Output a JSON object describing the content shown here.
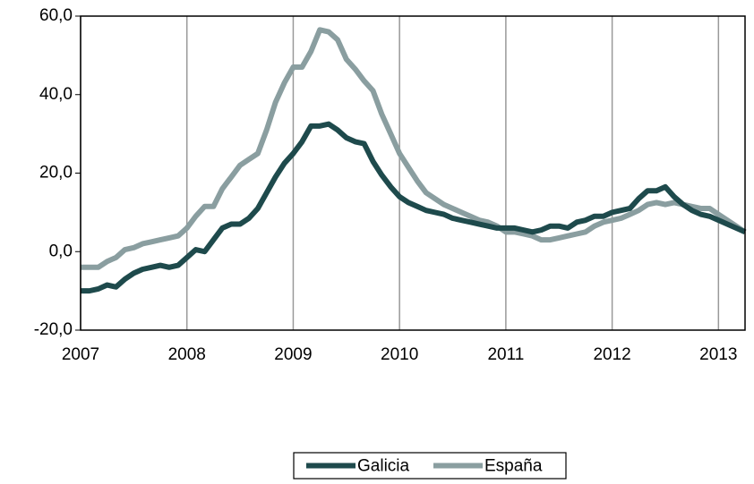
{
  "chart_data": {
    "type": "line",
    "x": [
      2007,
      2007.083,
      2007.167,
      2007.25,
      2007.333,
      2007.417,
      2007.5,
      2007.583,
      2007.667,
      2007.75,
      2007.833,
      2007.917,
      2008,
      2008.083,
      2008.167,
      2008.25,
      2008.333,
      2008.417,
      2008.5,
      2008.583,
      2008.667,
      2008.75,
      2008.833,
      2008.917,
      2009,
      2009.083,
      2009.167,
      2009.25,
      2009.333,
      2009.417,
      2009.5,
      2009.583,
      2009.667,
      2009.75,
      2009.833,
      2009.917,
      2010,
      2010.083,
      2010.167,
      2010.25,
      2010.333,
      2010.417,
      2010.5,
      2010.583,
      2010.667,
      2010.75,
      2010.833,
      2010.917,
      2011,
      2011.083,
      2011.167,
      2011.25,
      2011.333,
      2011.417,
      2011.5,
      2011.583,
      2011.667,
      2011.75,
      2011.833,
      2011.917,
      2012,
      2012.083,
      2012.167,
      2012.25,
      2012.333,
      2012.417,
      2012.5,
      2012.583,
      2012.667,
      2012.75,
      2012.833,
      2012.917,
      2013,
      2013.083,
      2013.167,
      2013.25
    ],
    "series": [
      {
        "name": "Galicia",
        "color": "#1e4a4c",
        "values": [
          -10,
          -10,
          -9.5,
          -8.5,
          -9,
          -7,
          -5.5,
          -4.5,
          -4,
          -3.5,
          -4,
          -3.5,
          -1.5,
          0.5,
          0,
          3,
          6,
          7,
          7,
          8.5,
          11,
          15,
          19,
          22.5,
          25,
          28,
          32,
          32,
          32.5,
          31,
          29,
          28,
          27.5,
          23,
          19.5,
          16.5,
          14,
          12.5,
          11.5,
          10.5,
          10,
          9.5,
          8.5,
          8,
          7.5,
          7,
          6.5,
          6,
          6,
          6,
          5.5,
          5,
          5.5,
          6.5,
          6.5,
          6,
          7.5,
          8,
          9,
          9,
          10,
          10.5,
          11,
          13.5,
          15.5,
          15.5,
          16.5,
          14,
          12,
          10.5,
          9.5,
          9,
          8,
          7,
          6,
          5
        ]
      },
      {
        "name": "España",
        "color": "#8a9ea0",
        "values": [
          -4,
          -4,
          -4,
          -2.5,
          -1.5,
          0.5,
          1,
          2,
          2.5,
          3,
          3.5,
          4,
          6,
          9,
          11.5,
          11.5,
          16,
          19,
          22,
          23.5,
          25,
          31,
          38,
          43,
          47,
          47,
          51,
          56.5,
          56,
          54,
          49,
          46.5,
          43.5,
          41,
          35,
          30,
          25,
          21.5,
          18,
          15,
          13.5,
          12,
          11,
          10,
          9,
          8,
          7.5,
          6.5,
          5,
          5,
          4.5,
          4,
          3,
          3,
          3.5,
          4,
          4.5,
          5,
          6.5,
          7.5,
          8,
          8.5,
          9.5,
          10.5,
          12,
          12.5,
          12,
          12.5,
          12,
          11.5,
          11,
          11,
          9.5,
          8,
          6.5,
          5
        ]
      }
    ],
    "xlim": [
      2007,
      2013.25
    ],
    "xticks": [
      2007,
      2008,
      2009,
      2010,
      2011,
      2012,
      2013
    ],
    "ylim": [
      -20,
      60
    ],
    "yticks": [
      {
        "value": -20,
        "label": "-20,0"
      },
      {
        "value": 0,
        "label": "0,0"
      },
      {
        "value": 20,
        "label": "20,0"
      },
      {
        "value": 40,
        "label": "40,0"
      },
      {
        "value": 60,
        "label": "60,0"
      }
    ],
    "grid": true,
    "legend": "bottom"
  }
}
